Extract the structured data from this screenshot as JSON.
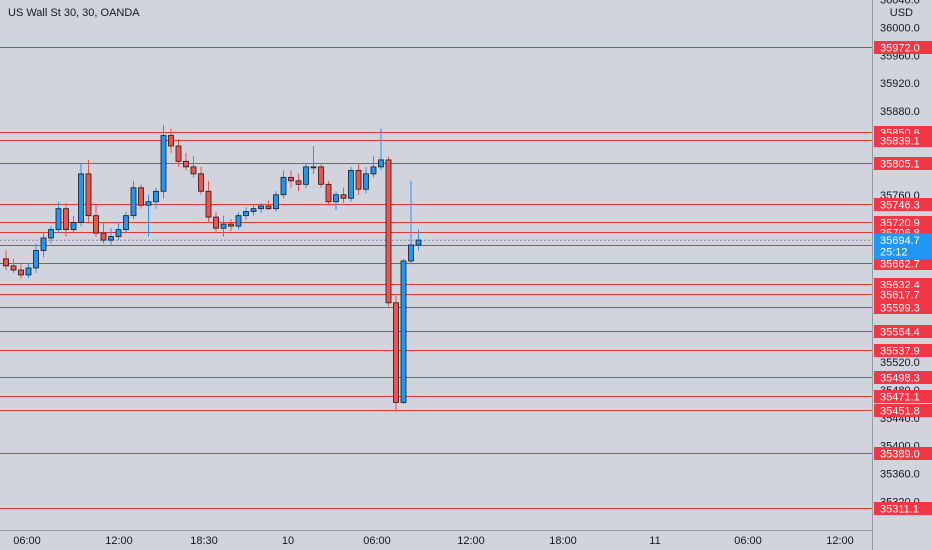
{
  "header": {
    "title": "US Wall St 30, 30, OANDA"
  },
  "axis": {
    "currency": "USD"
  },
  "colors": {
    "background": "#d1d4dc",
    "up": "#2196f3",
    "down": "#ef5350",
    "line": "#e53935",
    "label_bg": "#f23645",
    "current_bg": "#2196f3",
    "axis_text": "#131722"
  },
  "chart_data": {
    "type": "candlestick",
    "title": "US Wall St 30, 30, OANDA",
    "y_unit": "USD",
    "ylim": [
      35300,
      36050
    ],
    "y_ticks": [
      "36040.0",
      "36000.0",
      "35960.0",
      "35920.0",
      "35880.0",
      "35760.0",
      "35520.0",
      "35480.0",
      "35440.0",
      "35400.0",
      "35360.0",
      "35320.0"
    ],
    "x_ticks": [
      "06:00",
      "12:00",
      "18:30",
      "10",
      "06:00",
      "12:00",
      "18:00",
      "11",
      "06:00",
      "12:00"
    ],
    "horizontal_levels": [
      "35972.0",
      "35850.6",
      "35839.1",
      "35805.1",
      "35746.3",
      "35720.9",
      "35706.8",
      "35688.2",
      "35662.7",
      "35632.4",
      "35617.7",
      "35599.3",
      "35564.4",
      "35537.9",
      "35498.3",
      "35471.1",
      "35451.8",
      "35389.0",
      "35311.1"
    ],
    "current_price": {
      "value": "35694.7",
      "countdown": "25:12"
    },
    "candles": [
      [
        35668,
        35680,
        35652,
        35658
      ],
      [
        35658,
        35668,
        35648,
        35652
      ],
      [
        35652,
        35660,
        35640,
        35645
      ],
      [
        35645,
        35662,
        35640,
        35655
      ],
      [
        35655,
        35690,
        35648,
        35680
      ],
      [
        35680,
        35705,
        35670,
        35698
      ],
      [
        35698,
        35715,
        35690,
        35710
      ],
      [
        35710,
        35750,
        35705,
        35740
      ],
      [
        35740,
        35748,
        35700,
        35710
      ],
      [
        35710,
        35730,
        35705,
        35720
      ],
      [
        35720,
        35805,
        35715,
        35790
      ],
      [
        35790,
        35810,
        35720,
        35730
      ],
      [
        35730,
        35745,
        35700,
        35705
      ],
      [
        35705,
        35720,
        35690,
        35695
      ],
      [
        35695,
        35712,
        35688,
        35700
      ],
      [
        35700,
        35720,
        35695,
        35710
      ],
      [
        35710,
        35735,
        35705,
        35730
      ],
      [
        35730,
        35780,
        35725,
        35770
      ],
      [
        35770,
        35775,
        35740,
        35745
      ],
      [
        35745,
        35760,
        35700,
        35750
      ],
      [
        35750,
        35770,
        35740,
        35765
      ],
      [
        35765,
        35860,
        35755,
        35845
      ],
      [
        35845,
        35855,
        35820,
        35830
      ],
      [
        35830,
        35840,
        35800,
        35808
      ],
      [
        35808,
        35820,
        35795,
        35800
      ],
      [
        35800,
        35815,
        35785,
        35790
      ],
      [
        35790,
        35800,
        35760,
        35765
      ],
      [
        35765,
        35780,
        35720,
        35728
      ],
      [
        35728,
        35735,
        35705,
        35712
      ],
      [
        35712,
        35730,
        35700,
        35718
      ],
      [
        35718,
        35725,
        35708,
        35715
      ],
      [
        35715,
        35735,
        35710,
        35730
      ],
      [
        35730,
        35742,
        35724,
        35736
      ],
      [
        35736,
        35745,
        35730,
        35740
      ],
      [
        35740,
        35748,
        35734,
        35744
      ],
      [
        35744,
        35752,
        35738,
        35740
      ],
      [
        35740,
        35765,
        35736,
        35760
      ],
      [
        35760,
        35795,
        35755,
        35785
      ],
      [
        35785,
        35795,
        35770,
        35780
      ],
      [
        35780,
        35790,
        35765,
        35775
      ],
      [
        35775,
        35805,
        35770,
        35800
      ],
      [
        35800,
        35830,
        35790,
        35800
      ],
      [
        35800,
        35805,
        35770,
        35775
      ],
      [
        35775,
        35780,
        35745,
        35750
      ],
      [
        35750,
        35765,
        35738,
        35760
      ],
      [
        35760,
        35770,
        35748,
        35755
      ],
      [
        35755,
        35800,
        35750,
        35795
      ],
      [
        35795,
        35805,
        35760,
        35768
      ],
      [
        35768,
        35800,
        35762,
        35790
      ],
      [
        35790,
        35815,
        35785,
        35800
      ],
      [
        35800,
        35855,
        35795,
        35810
      ],
      [
        35810,
        35815,
        35600,
        35605
      ],
      [
        35605,
        35615,
        35448,
        35462
      ],
      [
        35462,
        35668,
        35460,
        35665
      ],
      [
        35665,
        35780,
        35660,
        35688
      ],
      [
        35688,
        35710,
        35680,
        35695
      ]
    ]
  }
}
